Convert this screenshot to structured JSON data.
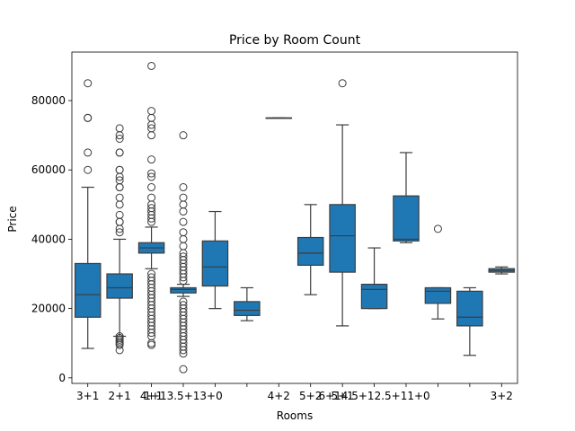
{
  "chart_data": {
    "type": "box",
    "title": "Price by Room Count",
    "xlabel": "Rooms",
    "ylabel": "Price",
    "ylim": [
      -1600,
      94000
    ],
    "yticks": [
      0,
      20000,
      40000,
      60000,
      80000
    ],
    "ytick_labels": [
      "0",
      "20000",
      "40000",
      "60000",
      "80000"
    ],
    "grid": false,
    "box_color": "#1f77b4",
    "line_color": "#3d3d3d",
    "categories": [
      "3+1",
      "2+1",
      "4+1",
      "1+1",
      "3.5+1",
      "3+0",
      "4+2",
      "5+2",
      "5+1",
      "6+1",
      "4.5+1",
      "2.5+1",
      "1+0",
      "3+2"
    ],
    "tick_labels": [
      "3+1",
      "2+1",
      "4+1",
      "1+13.5+13+0",
      "",
      "",
      "4+2",
      "5+2",
      "5+1",
      "6+14.5+12.5+11+0",
      "",
      "",
      "",
      "3+2"
    ],
    "boxes": [
      {
        "category": "3+1",
        "whislo": 8500,
        "q1": 17500,
        "med": 24000,
        "q3": 33000,
        "whishi": 55000,
        "fliers": [
          60000,
          65000,
          75000,
          75000,
          85000
        ]
      },
      {
        "category": "2+1",
        "whislo": 12000,
        "q1": 23000,
        "med": 26000,
        "q3": 30000,
        "whishi": 40000,
        "fliers": [
          8000,
          9500,
          10000,
          10500,
          11000,
          11500,
          12000,
          42000,
          43000,
          45000,
          45000,
          47000,
          50000,
          52000,
          55000,
          55000,
          57000,
          58000,
          60000,
          60000,
          65000,
          65000,
          69000,
          70000,
          72000
        ]
      },
      {
        "category": "4+1",
        "whislo": 31500,
        "q1": 36000,
        "med": 37500,
        "q3": 39000,
        "whishi": 43500,
        "fliers": [
          9500,
          10000,
          12000,
          13000,
          14000,
          15000,
          16000,
          17000,
          18000,
          19000,
          20000,
          21000,
          22000,
          23000,
          24000,
          25000,
          26000,
          27000,
          28000,
          29000,
          30000,
          45000,
          46000,
          47000,
          48000,
          49000,
          50000,
          52000,
          55000,
          58000,
          59000,
          63000,
          70000,
          72000,
          73000,
          75000,
          77000,
          90000
        ]
      },
      {
        "category": "1+1",
        "whislo": 23500,
        "q1": 24500,
        "med": 25500,
        "q3": 26000,
        "whishi": 27000,
        "fliers": [
          2500,
          7000,
          8000,
          9000,
          10000,
          11000,
          12000,
          13000,
          14000,
          15000,
          16000,
          17000,
          18000,
          19000,
          20000,
          21000,
          22000,
          28000,
          29000,
          30000,
          31000,
          32000,
          33000,
          34000,
          35000,
          36000,
          38000,
          40000,
          42000,
          45000,
          48000,
          50000,
          52000,
          55000,
          70000
        ]
      },
      {
        "category": "3.5+1",
        "whislo": 20000,
        "q1": 26500,
        "med": 32000,
        "q3": 39500,
        "whishi": 48000,
        "fliers": []
      },
      {
        "category": "3+0",
        "whislo": 16500,
        "q1": 18000,
        "med": 19500,
        "q3": 22000,
        "whishi": 26000,
        "fliers": []
      },
      {
        "category": "4+2",
        "whislo": 75000,
        "q1": 75000,
        "med": 75000,
        "q3": 75000,
        "whishi": 75000,
        "fliers": []
      },
      {
        "category": "5+2",
        "whislo": 24000,
        "q1": 32500,
        "med": 36000,
        "q3": 40500,
        "whishi": 50000,
        "fliers": []
      },
      {
        "category": "5+1",
        "whislo": 15000,
        "q1": 30500,
        "med": 41000,
        "q3": 50000,
        "whishi": 73000,
        "fliers": [
          85000
        ]
      },
      {
        "category": "6+1",
        "whislo": 20000,
        "q1": 20000,
        "med": 25500,
        "q3": 27000,
        "whishi": 37500,
        "fliers": []
      },
      {
        "category": "4.5+1",
        "whislo": 39000,
        "q1": 39500,
        "med": 40000,
        "q3": 52500,
        "whishi": 65000,
        "fliers": []
      },
      {
        "category": "2.5+1",
        "whislo": 17000,
        "q1": 21500,
        "med": 25000,
        "q3": 26000,
        "whishi": 26000,
        "fliers": [
          43000
        ]
      },
      {
        "category": "1+0",
        "whislo": 6500,
        "q1": 15000,
        "med": 17500,
        "q3": 25000,
        "whishi": 26000,
        "fliers": []
      },
      {
        "category": "3+2",
        "whislo": 30000,
        "q1": 30500,
        "med": 31000,
        "q3": 31500,
        "whishi": 32000,
        "fliers": []
      }
    ]
  }
}
